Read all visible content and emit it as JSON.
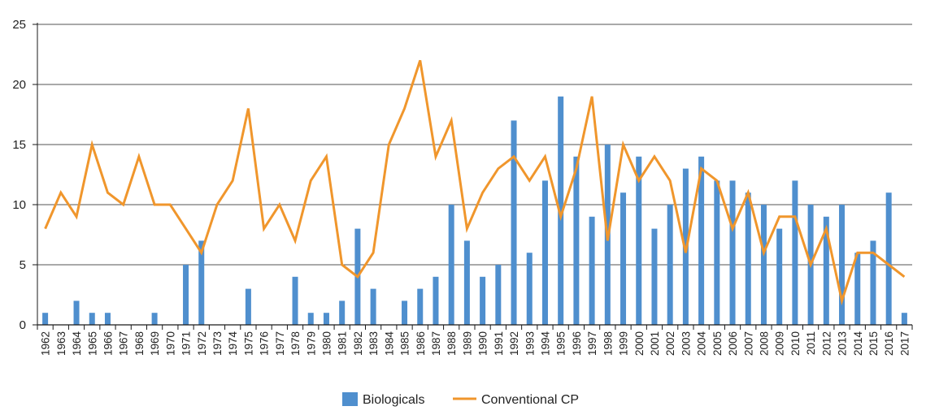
{
  "chart_data": {
    "type": "bar",
    "categories": [
      "1962",
      "1963",
      "1964",
      "1965",
      "1966",
      "1967",
      "1968",
      "1969",
      "1970",
      "1971",
      "1972",
      "1973",
      "1974",
      "1975",
      "1976",
      "1977",
      "1978",
      "1979",
      "1980",
      "1981",
      "1982",
      "1983",
      "1984",
      "1985",
      "1986",
      "1987",
      "1988",
      "1989",
      "1990",
      "1991",
      "1992",
      "1993",
      "1994",
      "1995",
      "1996",
      "1997",
      "1998",
      "1999",
      "2000",
      "2001",
      "2002",
      "2003",
      "2004",
      "2005",
      "2006",
      "2007",
      "2008",
      "2009",
      "2010",
      "2011",
      "2012",
      "2013",
      "2014",
      "2015",
      "2016",
      "2017"
    ],
    "series": [
      {
        "name": "Biologicals",
        "type": "bar",
        "color": "#4f8fce",
        "values": [
          1,
          0,
          2,
          1,
          1,
          0,
          0,
          1,
          0,
          5,
          7,
          0,
          0,
          3,
          0,
          0,
          4,
          1,
          1,
          2,
          8,
          3,
          0,
          2,
          3,
          4,
          10,
          7,
          4,
          5,
          17,
          6,
          12,
          19,
          14,
          9,
          15,
          11,
          14,
          8,
          10,
          13,
          14,
          12,
          12,
          11,
          10,
          8,
          12,
          10,
          9,
          10,
          6,
          7,
          11,
          1
        ]
      },
      {
        "name": "Conventional CP",
        "type": "line",
        "color": "#f0962c",
        "values": [
          8,
          11,
          9,
          15,
          11,
          10,
          14,
          10,
          10,
          8,
          6,
          10,
          12,
          18,
          8,
          10,
          7,
          12,
          14,
          5,
          4,
          6,
          15,
          18,
          22,
          14,
          17,
          8,
          11,
          13,
          14,
          12,
          14,
          9,
          13,
          19,
          7,
          15,
          12,
          14,
          12,
          6,
          13,
          12,
          8,
          11,
          6,
          9,
          9,
          5,
          8,
          2,
          6,
          6,
          5,
          4
        ]
      }
    ],
    "xlabel": "",
    "ylabel": "",
    "ylim": [
      0,
      25
    ],
    "yticks": [
      0,
      5,
      10,
      15,
      20,
      25
    ],
    "grid": true,
    "legend": "bottom-center"
  }
}
